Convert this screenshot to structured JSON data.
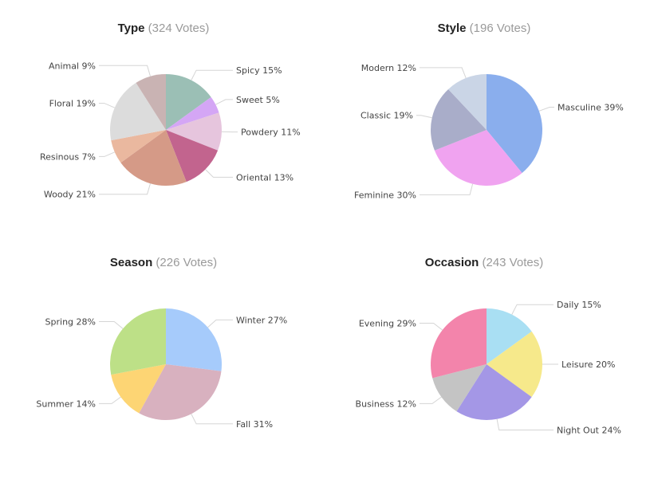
{
  "chart_data": [
    {
      "type": "pie",
      "title": "Type",
      "subtitle": "(324 Votes)",
      "slices": [
        {
          "label": "Spicy 15%",
          "value": 15,
          "color": "#9bbfb5"
        },
        {
          "label": "Sweet 5%",
          "value": 5,
          "color": "#d4a6f5"
        },
        {
          "label": "Powdery 11%",
          "value": 11,
          "color": "#e6c5dd"
        },
        {
          "label": "Oriental 13%",
          "value": 13,
          "color": "#c2648e"
        },
        {
          "label": "Woody 21%",
          "value": 21,
          "color": "#d59a87"
        },
        {
          "label": "Resinous 7%",
          "value": 7,
          "color": "#eab89f"
        },
        {
          "label": "Floral 19%",
          "value": 19,
          "color": "#dcdcdc"
        },
        {
          "label": "Animal 9%",
          "value": 9,
          "color": "#c9b3b3"
        }
      ]
    },
    {
      "type": "pie",
      "title": "Style",
      "subtitle": "(196 Votes)",
      "slices": [
        {
          "label": "Masculine 39%",
          "value": 39,
          "color": "#8aaeed"
        },
        {
          "label": "Feminine 30%",
          "value": 30,
          "color": "#f0a3f0"
        },
        {
          "label": "Classic 19%",
          "value": 19,
          "color": "#a9adc9"
        },
        {
          "label": "Modern 12%",
          "value": 12,
          "color": "#cad5e6"
        }
      ]
    },
    {
      "type": "pie",
      "title": "Season",
      "subtitle": "(226 Votes)",
      "slices": [
        {
          "label": "Winter 27%",
          "value": 27,
          "color": "#a6cbfb"
        },
        {
          "label": "Fall 31%",
          "value": 31,
          "color": "#d8b1bf"
        },
        {
          "label": "Summer 14%",
          "value": 14,
          "color": "#fdd574"
        },
        {
          "label": "Spring 28%",
          "value": 28,
          "color": "#bde087"
        }
      ]
    },
    {
      "type": "pie",
      "title": "Occasion",
      "subtitle": "(243 Votes)",
      "slices": [
        {
          "label": "Daily 15%",
          "value": 15,
          "color": "#a9dff3"
        },
        {
          "label": "Leisure 20%",
          "value": 20,
          "color": "#f6e98b"
        },
        {
          "label": "Night Out 24%",
          "value": 24,
          "color": "#a497e6"
        },
        {
          "label": "Business 12%",
          "value": 12,
          "color": "#c4c4c4"
        },
        {
          "label": "Evening 29%",
          "value": 29,
          "color": "#f384ab"
        }
      ]
    }
  ]
}
